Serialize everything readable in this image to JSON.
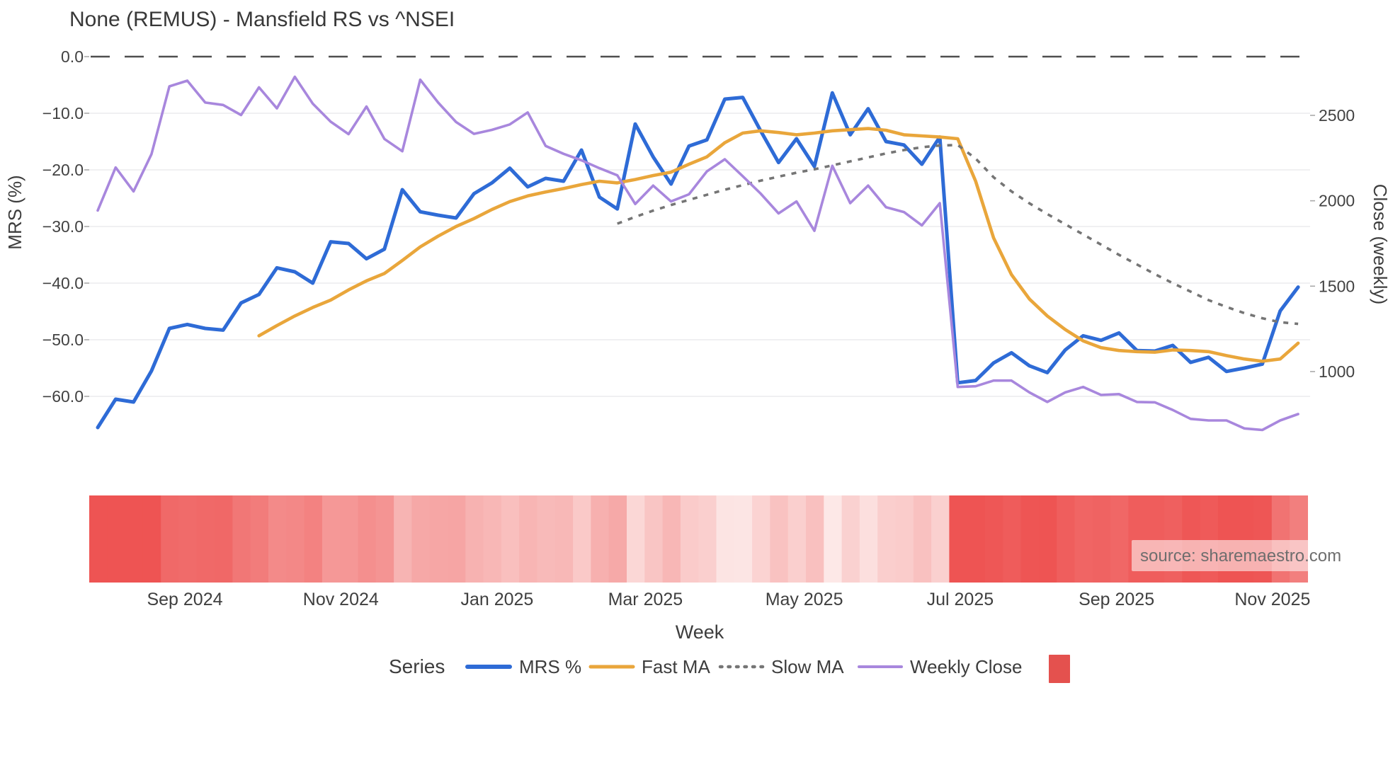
{
  "title": "None (REMUS) - Mansfield RS vs ^NSEI",
  "source_text": "source: sharemaestro.com",
  "axes": {
    "left": {
      "label": "MRS (%)",
      "ticks": [
        {
          "value": 0,
          "label": "0.0"
        },
        {
          "value": -10,
          "label": "−10.0"
        },
        {
          "value": -20,
          "label": "−20.0"
        },
        {
          "value": -30,
          "label": "−30.0"
        },
        {
          "value": -40,
          "label": "−40.0"
        },
        {
          "value": -50,
          "label": "−50.0"
        },
        {
          "value": -60,
          "label": "−60.0"
        }
      ]
    },
    "right": {
      "label": "Close (weekly)",
      "ticks": [
        {
          "value": 2500,
          "label": "2500"
        },
        {
          "value": 2000,
          "label": "2000"
        },
        {
          "value": 1500,
          "label": "1500"
        },
        {
          "value": 1000,
          "label": "1000"
        }
      ]
    },
    "x": {
      "label": "Week",
      "ticks": [
        {
          "week": 4.86,
          "label": "Sep 2024"
        },
        {
          "week": 13.57,
          "label": "Nov 2024"
        },
        {
          "week": 22.29,
          "label": "Jan 2025"
        },
        {
          "week": 30.57,
          "label": "Mar 2025"
        },
        {
          "week": 39.43,
          "label": "May 2025"
        },
        {
          "week": 48.14,
          "label": "Jul 2025"
        },
        {
          "week": 56.86,
          "label": "Sep 2025"
        },
        {
          "week": 65.57,
          "label": "Nov 2025"
        }
      ]
    }
  },
  "legend": {
    "title": "Series",
    "items": [
      {
        "label": "MRS %"
      },
      {
        "label": "Fast MA"
      },
      {
        "label": "Slow MA"
      },
      {
        "label": "Weekly Close"
      }
    ]
  },
  "colors": {
    "mrs": "#2e6bd6",
    "fast_ma": "#e9a63b",
    "slow_ma": "#757575",
    "weekly_close": "#a887dd",
    "zero_line": "#4f4f4f",
    "gridline": "#ebebee",
    "tick_mark": "#aaaaaa",
    "band_low": "#fdeceb",
    "band_high": "#ee5453",
    "legend_marker": "#e4514e",
    "source_box": "rgba(255,255,255,0.55)"
  },
  "chart_data": {
    "type": "line",
    "title": "None (REMUS) - Mansfield RS vs ^NSEI",
    "xlabel": "Week",
    "ylabel_left": "MRS (%)",
    "ylabel_right": "Close (weekly)",
    "x_unit": "week_index",
    "weeks_total": 68,
    "x_range_weeks": [
      0,
      67
    ],
    "x_tick_labels": [
      "Sep 2024",
      "Nov 2024",
      "Jan 2025",
      "Mar 2025",
      "May 2025",
      "Jul 2025",
      "Sep 2025",
      "Nov 2025"
    ],
    "ylim_left": [
      -70,
      2
    ],
    "ylim_right": [
      520,
      2910
    ],
    "grid": "horizontal-only",
    "legend_position": "bottom",
    "series": [
      {
        "name": "MRS %",
        "axis": "left",
        "style": "solid",
        "color": "#2e6bd6",
        "start_week": 0,
        "values": [
          -65.5,
          -60.5,
          -61,
          -55.5,
          -48,
          -47.3,
          -48,
          -48.3,
          -43.5,
          -42,
          -37.3,
          -38,
          -40,
          -32.7,
          -33,
          -35.7,
          -34,
          -23.5,
          -27.4,
          -28,
          -28.5,
          -24.2,
          -22.3,
          -19.7,
          -23,
          -21.5,
          -22,
          -16.5,
          -24.8,
          -26.9,
          -11.9,
          -17.7,
          -22.5,
          -15.8,
          -14.7,
          -7.5,
          -7.2,
          -13.1,
          -18.7,
          -14.5,
          -19.4,
          -6.4,
          -13.8,
          -9.2,
          -15,
          -15.6,
          -19,
          -14.2,
          -57.6,
          -57.2,
          -54.1,
          -52.3,
          -54.6,
          -55.8,
          -51.8,
          -49.3,
          -50.1,
          -48.8,
          -51.9,
          -52,
          -51,
          -54,
          -53.1,
          -55.6,
          -55,
          -54.3,
          -44.9,
          -40.7
        ]
      },
      {
        "name": "Fast MA",
        "axis": "left",
        "style": "solid",
        "color": "#e9a63b",
        "start_week": 9,
        "values": [
          -49.3,
          -47.5,
          -45.8,
          -44.3,
          -43,
          -41.2,
          -39.6,
          -38.3,
          -36,
          -33.6,
          -31.7,
          -30,
          -28.6,
          -27,
          -25.6,
          -24.6,
          -23.9,
          -23.3,
          -22.6,
          -22,
          -22.3,
          -21.7,
          -21,
          -20.4,
          -19,
          -17.7,
          -15.2,
          -13.5,
          -13.1,
          -13.4,
          -13.8,
          -13.5,
          -13.1,
          -12.9,
          -12.7,
          -13,
          -13.8,
          -14,
          -14.2,
          -14.5,
          -22,
          -32,
          -38.5,
          -42.8,
          -45.8,
          -48.2,
          -50.2,
          -51.4,
          -51.9,
          -52.1,
          -52.2,
          -51.8,
          -51.9,
          -52.1,
          -52.8,
          -53.4,
          -53.8,
          -53.4,
          -50.6
        ]
      },
      {
        "name": "Slow MA",
        "axis": "left",
        "style": "dotted",
        "color": "#757575",
        "start_week": 29,
        "values": [
          -29.5,
          -28.3,
          -27.2,
          -26.2,
          -25.3,
          -24.4,
          -23.5,
          -22.7,
          -21.9,
          -21.2,
          -20.5,
          -19.9,
          -19.2,
          -18.5,
          -17.8,
          -17.1,
          -16.5,
          -16,
          -15.7,
          -15.6,
          -18,
          -21.3,
          -23.8,
          -25.9,
          -27.8,
          -29.6,
          -31.4,
          -33.2,
          -35,
          -36.7,
          -38.4,
          -40,
          -41.5,
          -43,
          -44.2,
          -45.3,
          -46.2,
          -46.9,
          -47.2
        ]
      },
      {
        "name": "Weekly Close",
        "axis": "right",
        "style": "solid",
        "color": "#a887dd",
        "start_week": 0,
        "values": [
          1943,
          2195,
          2055,
          2273,
          2670,
          2703,
          2575,
          2561,
          2502,
          2664,
          2541,
          2726,
          2569,
          2463,
          2390,
          2552,
          2362,
          2290,
          2709,
          2575,
          2461,
          2392,
          2415,
          2447,
          2517,
          2321,
          2275,
          2237,
          2191,
          2149,
          1981,
          2089,
          1996,
          2038,
          2172,
          2243,
          2144,
          2042,
          1926,
          1996,
          1824,
          2205,
          1986,
          2089,
          1962,
          1934,
          1856,
          1986,
          910,
          914,
          947,
          947,
          878,
          822,
          878,
          910,
          863,
          868,
          822,
          820,
          775,
          723,
          714,
          714,
          667,
          658,
          714,
          751
        ]
      }
    ],
    "heatmap_band": {
      "type": "heatmap_strip",
      "source_series": "MRS %",
      "note": "one colored column per week; red intensity increases as MRS becomes more negative",
      "colormap": {
        "low_value": -5,
        "high_value": -55,
        "low_color": "#fdeceb",
        "high_color": "#ee5453"
      }
    }
  }
}
